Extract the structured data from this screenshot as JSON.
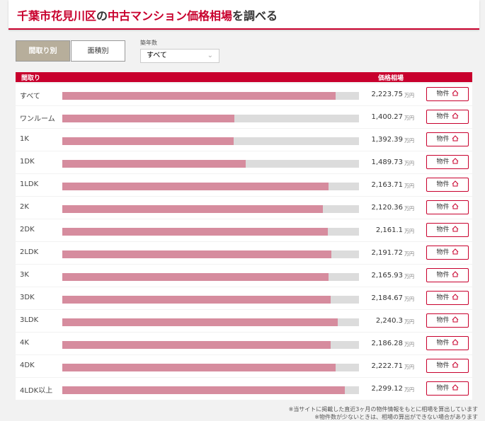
{
  "header": {
    "title_parts": [
      {
        "text": "千葉市花見川区",
        "color": "#c8002d"
      },
      {
        "text": "の",
        "color": "#333333"
      },
      {
        "text": "中古マンション価格相場",
        "color": "#c8002d"
      },
      {
        "text": "を調べる",
        "color": "#333333"
      }
    ]
  },
  "tabs": [
    "間取り別",
    "面積別"
  ],
  "filter": {
    "label": "築年数",
    "selected": "すべて"
  },
  "table": {
    "columns": [
      "間取り",
      "価格相場"
    ],
    "unit": "万円",
    "button": "物件",
    "bar_color": "#d68c9e",
    "rows": [
      {
        "layout": "すべて",
        "value": 2223.75,
        "value_label": "2,223.75"
      },
      {
        "layout": "ワンルーム",
        "value": 1400.27,
        "value_label": "1,400.27"
      },
      {
        "layout": "1K",
        "value": 1392.39,
        "value_label": "1,392.39"
      },
      {
        "layout": "1DK",
        "value": 1489.73,
        "value_label": "1,489.73"
      },
      {
        "layout": "1LDK",
        "value": 2163.71,
        "value_label": "2,163.71"
      },
      {
        "layout": "2K",
        "value": 2120.36,
        "value_label": "2,120.36"
      },
      {
        "layout": "2DK",
        "value": 2161.1,
        "value_label": "2,161.1"
      },
      {
        "layout": "2LDK",
        "value": 2191.72,
        "value_label": "2,191.72"
      },
      {
        "layout": "3K",
        "value": 2165.93,
        "value_label": "2,165.93"
      },
      {
        "layout": "3DK",
        "value": 2184.67,
        "value_label": "2,184.67"
      },
      {
        "layout": "3LDK",
        "value": 2240.3,
        "value_label": "2,240.3"
      },
      {
        "layout": "4K",
        "value": 2186.28,
        "value_label": "2,186.28"
      },
      {
        "layout": "4DK",
        "value": 2222.71,
        "value_label": "2,222.71"
      },
      {
        "layout": "4LDK以上",
        "value": 2299.12,
        "value_label": "2,299.12"
      }
    ]
  },
  "footnotes": [
    "※当サイトに掲載した直近3ヶ月の物件情報をもとに相場を算出しています",
    "※物件数が少ないときは、相場の算出ができない場合があります"
  ]
}
